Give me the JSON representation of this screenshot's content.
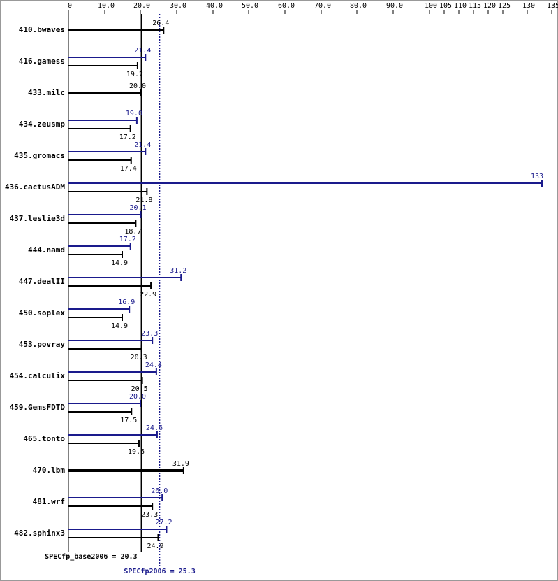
{
  "chart_data": {
    "type": "bar",
    "orientation": "horizontal",
    "categories": [
      "410.bwaves",
      "416.gamess",
      "433.milc",
      "434.zeusmp",
      "435.gromacs",
      "436.cactusADM",
      "437.leslie3d",
      "444.namd",
      "447.dealII",
      "450.soplex",
      "453.povray",
      "454.calculix",
      "459.GemsFDTD",
      "465.tonto",
      "470.lbm",
      "481.wrf",
      "482.sphinx3"
    ],
    "series": [
      {
        "name": "SPECfp2006",
        "color": "#1a1a8c",
        "values": [
          null,
          21.4,
          null,
          19.0,
          21.4,
          133,
          20.1,
          17.2,
          31.2,
          16.9,
          23.3,
          24.4,
          20.0,
          24.6,
          null,
          26.0,
          27.2
        ],
        "value_labels": [
          null,
          "21.4",
          null,
          "19.0",
          "21.4",
          "133",
          "20.1",
          "17.2",
          "31.2",
          "16.9",
          "23.3",
          "24.4",
          "20.0",
          "24.6",
          null,
          "26.0",
          "27.2"
        ]
      },
      {
        "name": "SPECfp_base2006",
        "color": "#000000",
        "values": [
          26.4,
          19.2,
          20.0,
          17.2,
          17.4,
          21.8,
          18.7,
          14.9,
          22.9,
          14.9,
          20.3,
          20.5,
          17.5,
          19.6,
          31.9,
          23.3,
          24.9
        ],
        "value_labels": [
          "26.4",
          "19.2",
          "20.0",
          "17.2",
          "17.4",
          "21.8",
          "18.7",
          "14.9",
          "22.9",
          "14.9",
          "20.3",
          "20.5",
          "17.5",
          "19.6",
          "31.9",
          "23.3",
          "24.9"
        ]
      }
    ],
    "xlim": [
      0,
      135
    ],
    "xticks": [
      0,
      {
        "value": 10,
        "label": "10.0"
      },
      {
        "value": 20,
        "label": "20.0"
      },
      {
        "value": 30,
        "label": "30.0"
      },
      {
        "value": 40,
        "label": "40.0"
      },
      {
        "value": 50,
        "label": "50.0"
      },
      {
        "value": 60,
        "label": "60.0"
      },
      {
        "value": 70,
        "label": "70.0"
      },
      {
        "value": 80,
        "label": "80.0"
      },
      {
        "value": 90,
        "label": "90.0"
      },
      100,
      105,
      110,
      115,
      120,
      125,
      130,
      135
    ],
    "reference_lines": [
      {
        "label": "SPECfp_base2006 = 20.3",
        "value": 20.3,
        "color": "#000000",
        "style": "solid"
      },
      {
        "label": "SPECfp2006 = 25.3",
        "value": 25.3,
        "color": "#1a1a8c",
        "style": "dotted"
      }
    ]
  }
}
